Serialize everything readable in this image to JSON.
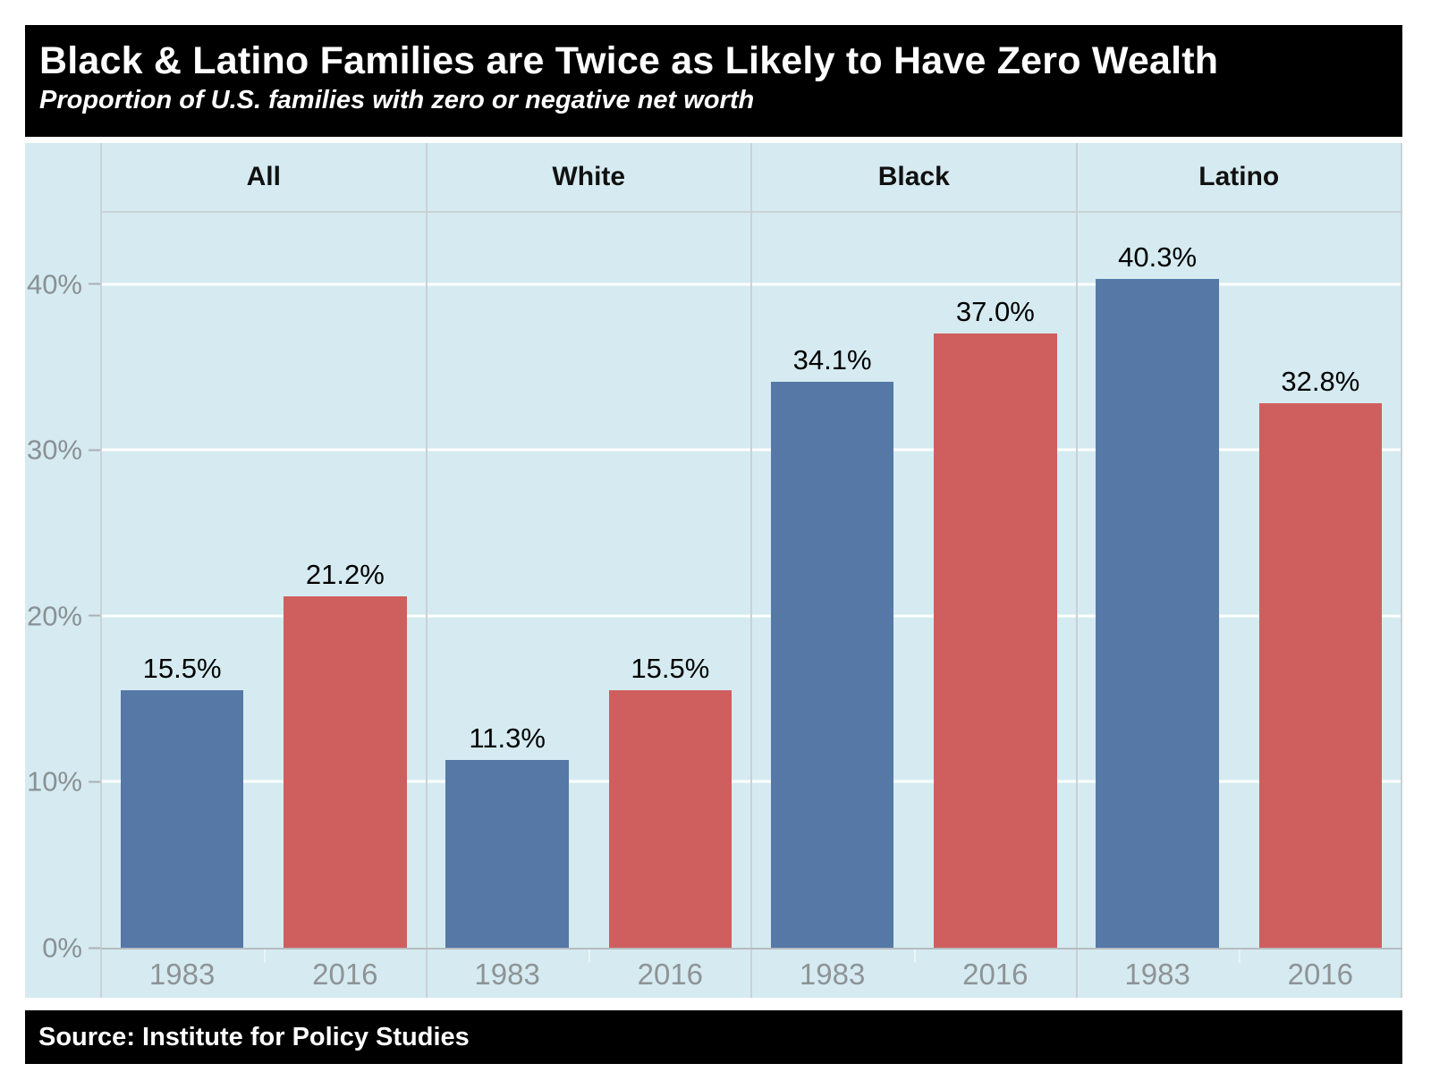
{
  "title": "Black & Latino Families are Twice as Likely to Have Zero Wealth",
  "subtitle": "Proportion of U.S. families with zero or negative net worth",
  "source": "Source: Institute for Policy Studies",
  "colors": {
    "bar_1983": "#5578a6",
    "bar_2016": "#cf5f5e",
    "panel_bg": "#d5ebf1",
    "gridline": "#ffffff",
    "divider": "#cbd1d4",
    "axis_text": "#8a9094",
    "title_bg": "#000000",
    "title_text": "#ffffff"
  },
  "chart_data": {
    "type": "bar",
    "title": "Black & Latino Families are Twice as Likely to Have Zero Wealth",
    "subtitle": "Proportion of U.S. families with zero or negative net worth",
    "categories": [
      "All",
      "White",
      "Black",
      "Latino"
    ],
    "series": [
      {
        "name": "1983",
        "color": "#5578a6",
        "values": [
          15.5,
          11.3,
          34.1,
          40.3
        ]
      },
      {
        "name": "2016",
        "color": "#cf5f5e",
        "values": [
          21.2,
          15.5,
          37.0,
          32.8
        ]
      }
    ],
    "bar_labels": [
      [
        "15.5%",
        "21.2%"
      ],
      [
        "11.3%",
        "15.5%"
      ],
      [
        "34.1%",
        "37.0%"
      ],
      [
        "40.3%",
        "32.8%"
      ]
    ],
    "x_tick_labels": [
      [
        "1983",
        "2016"
      ],
      [
        "1983",
        "2016"
      ],
      [
        "1983",
        "2016"
      ],
      [
        "1983",
        "2016"
      ]
    ],
    "y_ticks": [
      {
        "value": 0,
        "label": "0%"
      },
      {
        "value": 10,
        "label": "10%"
      },
      {
        "value": 20,
        "label": "20%"
      },
      {
        "value": 30,
        "label": "30%"
      },
      {
        "value": 40,
        "label": "40%"
      }
    ],
    "ylim": [
      0,
      44.3
    ],
    "ylabel": "",
    "xlabel": "",
    "grid": true,
    "legend_position": "none"
  }
}
